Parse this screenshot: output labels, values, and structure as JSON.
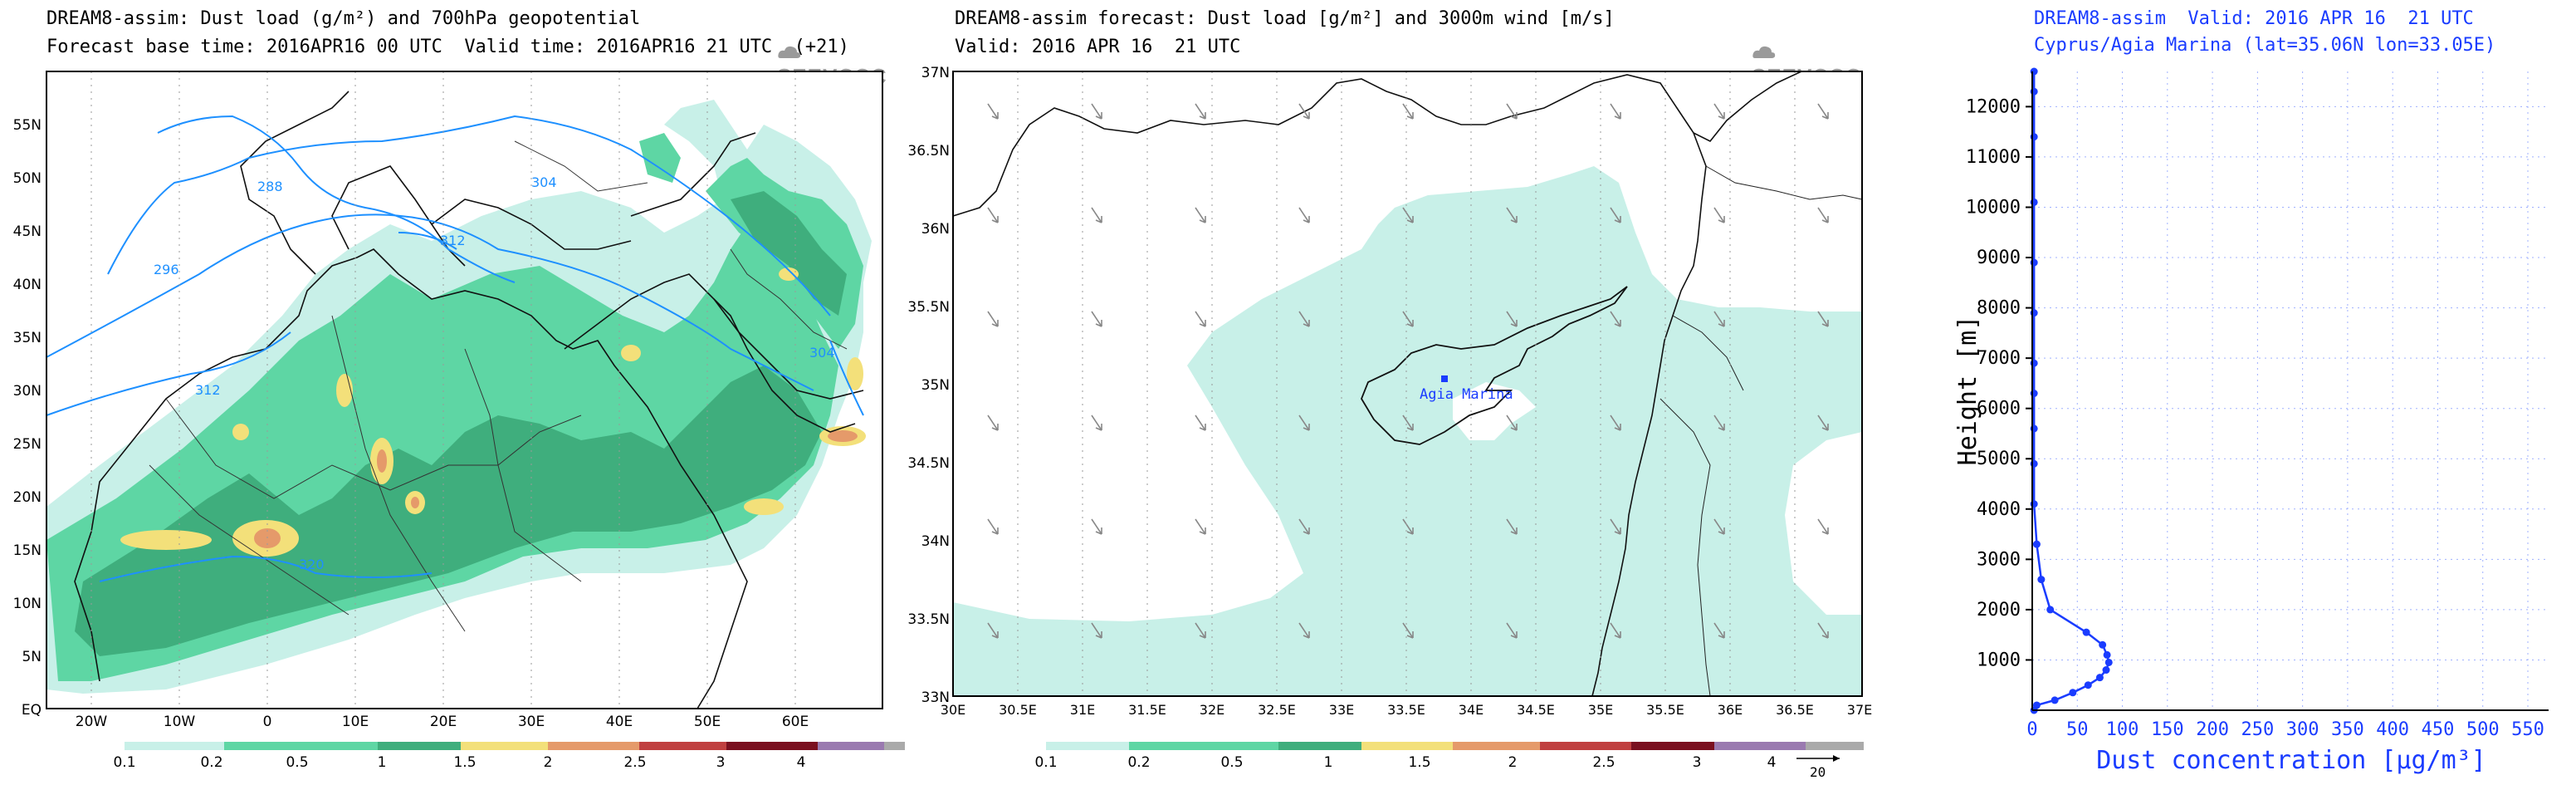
{
  "panel1": {
    "title_line1": "DREAM8-assim: Dust load (g/m²) and 700hPa geopotential",
    "title_line2": "Forecast base time: 2016APR16 00 UTC  Valid time: 2016APR16 21 UTC  (+21)",
    "logo": "SEEVCCC",
    "lat_labels": [
      "55N",
      "50N",
      "45N",
      "40N",
      "35N",
      "30N",
      "25N",
      "20N",
      "15N",
      "10N",
      "5N",
      "EQ"
    ],
    "lon_labels": [
      "20W",
      "10W",
      "0",
      "10E",
      "20E",
      "30E",
      "40E",
      "50E",
      "60E"
    ],
    "contour_labels": [
      "288",
      "296",
      "304",
      "312",
      "312",
      "320",
      "304"
    ],
    "colorbar_labels": [
      "0.1",
      "0.2",
      "0.5",
      "1",
      "1.5",
      "2",
      "2.5",
      "3",
      "4"
    ]
  },
  "panel2": {
    "title_line1": "DREAM8-assim forecast: Dust load [g/m²] and 3000m wind [m/s]",
    "title_line2": "Valid: 2016 APR 16  21 UTC",
    "logo": "SEEVCCC",
    "station_label": "Agia Marina",
    "lat_labels": [
      "37N",
      "36.5N",
      "36N",
      "35.5N",
      "35N",
      "34.5N",
      "34N",
      "33.5N",
      "33N"
    ],
    "lon_labels": [
      "30E",
      "30.5E",
      "31E",
      "31.5E",
      "32E",
      "32.5E",
      "33E",
      "33.5E",
      "34E",
      "34.5E",
      "35E",
      "35.5E",
      "36E",
      "36.5E",
      "37E"
    ],
    "colorbar_labels": [
      "0.1",
      "0.2",
      "0.5",
      "1",
      "1.5",
      "2",
      "2.5",
      "3",
      "4"
    ],
    "wind_ref": "20"
  },
  "panel3": {
    "title_line1": "DREAM8-assim  Valid: 2016 APR 16  21 UTC",
    "title_line2": "Cyprus/Agia Marina (lat=35.06N lon=33.05E)",
    "ylabel": "Height [m]",
    "xlabel": "Dust concentration [μg/m³]"
  },
  "colors": {
    "profile": "#1a3cff",
    "contour": "#1e90ff",
    "dust_light": "#c8f0e8",
    "dust_mid": "#5ed6a4",
    "dust_dark": "#3fae7d"
  },
  "chart_data": {
    "type": "line",
    "xlim": [
      0,
      550
    ],
    "ylim": [
      0,
      12700
    ],
    "xticks": [
      0,
      50,
      100,
      150,
      200,
      250,
      300,
      350,
      400,
      450,
      500,
      550
    ],
    "yticks": [
      1000,
      2000,
      3000,
      4000,
      5000,
      6000,
      7000,
      8000,
      9000,
      10000,
      11000,
      12000
    ],
    "grid": true,
    "xlabel": "Dust concentration [μg/m³]",
    "ylabel": "Height [m]",
    "series": [
      {
        "x": [
          2,
          5,
          25,
          45,
          62,
          75,
          82,
          85,
          83,
          78,
          60,
          20,
          10,
          5,
          2,
          2,
          2,
          2,
          2,
          2,
          2,
          2,
          2,
          2,
          2
        ],
        "y": [
          0,
          100,
          200,
          350,
          500,
          650,
          800,
          950,
          1100,
          1300,
          1550,
          2000,
          2600,
          3300,
          4100,
          4900,
          5600,
          6300,
          6900,
          7900,
          8900,
          10100,
          11400,
          12300,
          12700
        ]
      }
    ]
  }
}
